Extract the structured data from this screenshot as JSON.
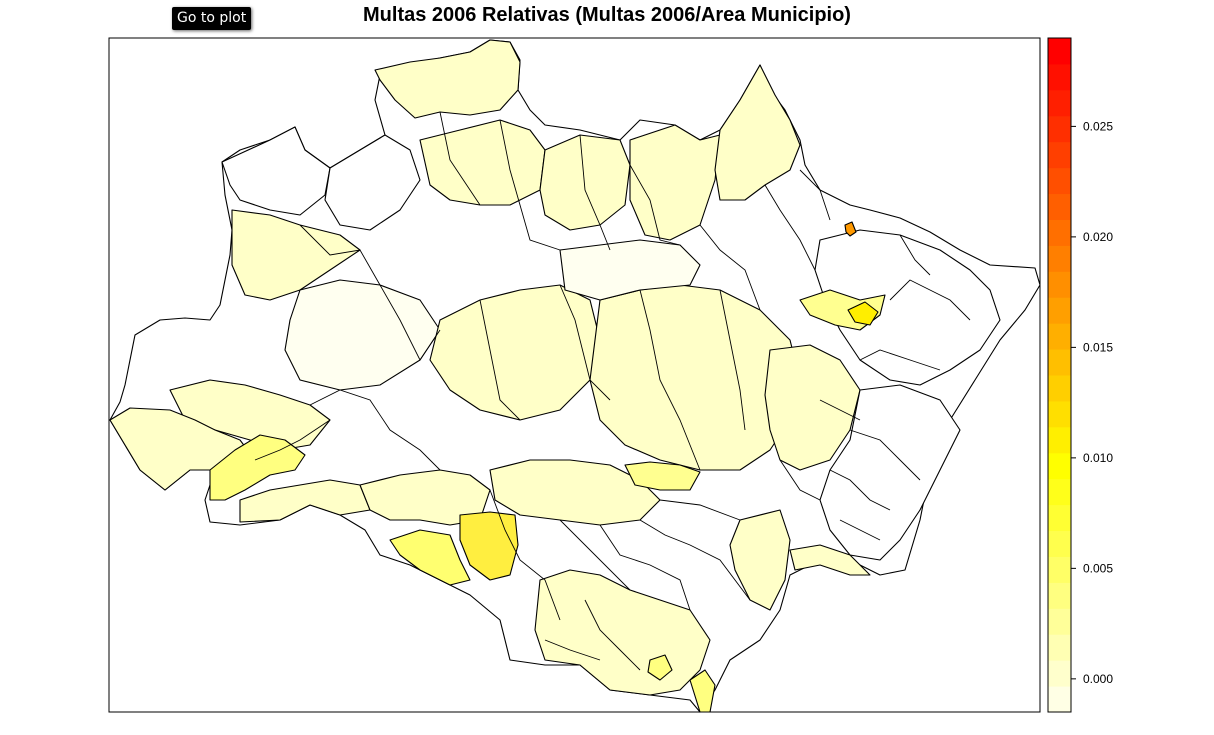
{
  "title": "Multas 2006 Relativas (Multas 2006/Area Municipio)",
  "goto_button": "Go to plot",
  "colors": {
    "border": "#000000",
    "none": "#ffffff",
    "very_low": "#ffffe6",
    "low": "#ffffc0",
    "mid": "#ffff80",
    "high": "#ffee00",
    "peak": "#ff8800"
  },
  "legend": {
    "ticks": [
      {
        "label": "0.000",
        "value": 0.0
      },
      {
        "label": "0.005",
        "value": 0.005
      },
      {
        "label": "0.010",
        "value": 0.01
      },
      {
        "label": "0.015",
        "value": 0.015
      },
      {
        "label": "0.020",
        "value": 0.02
      },
      {
        "label": "0.025",
        "value": 0.025
      }
    ],
    "range": [
      -0.0015,
      0.029
    ],
    "colors": [
      "#ffffe5",
      "#ffffcc",
      "#ffffb3",
      "#ffff99",
      "#ffff80",
      "#ffff66",
      "#ffff4d",
      "#ffff33",
      "#ffff1a",
      "#ffff00",
      "#ffef00",
      "#ffdf00",
      "#ffcf00",
      "#ffbf00",
      "#ffaf00",
      "#ff9f00",
      "#ff8f00",
      "#ff7f00",
      "#ff6f00",
      "#ff5f00",
      "#ff4f00",
      "#ff3f00",
      "#ff2f00",
      "#ff1f00",
      "#ff1000",
      "#ff0000"
    ]
  }
}
